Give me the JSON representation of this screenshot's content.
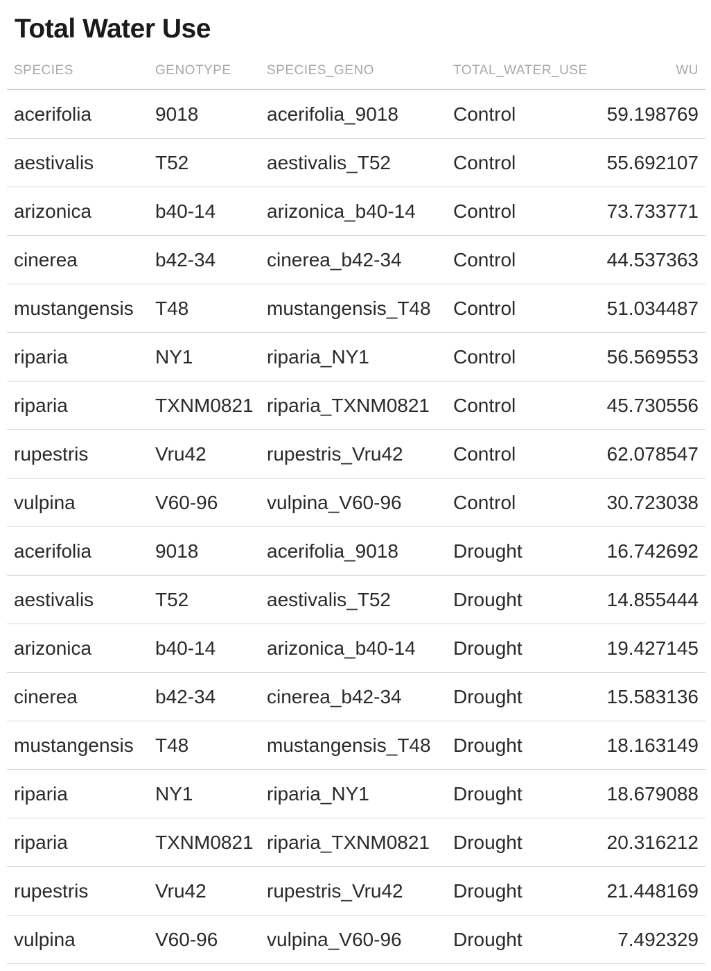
{
  "title": "Total Water Use",
  "columns": [
    "SPECIES",
    "GENOTYPE",
    "SPECIES_GENO",
    "TOTAL_WATER_USE",
    "WU"
  ],
  "rows": [
    [
      "acerifolia",
      "9018",
      "acerifolia_9018",
      "Control",
      "59.198769"
    ],
    [
      "aestivalis",
      "T52",
      "aestivalis_T52",
      "Control",
      "55.692107"
    ],
    [
      "arizonica",
      "b40-14",
      "arizonica_b40-14",
      "Control",
      "73.733771"
    ],
    [
      "cinerea",
      "b42-34",
      "cinerea_b42-34",
      "Control",
      "44.537363"
    ],
    [
      "mustangensis",
      "T48",
      "mustangensis_T48",
      "Control",
      "51.034487"
    ],
    [
      "riparia",
      "NY1",
      "riparia_NY1",
      "Control",
      "56.569553"
    ],
    [
      "riparia",
      "TXNM0821",
      "riparia_TXNM0821",
      "Control",
      "45.730556"
    ],
    [
      "rupestris",
      "Vru42",
      "rupestris_Vru42",
      "Control",
      "62.078547"
    ],
    [
      "vulpina",
      "V60-96",
      "vulpina_V60-96",
      "Control",
      "30.723038"
    ],
    [
      "acerifolia",
      "9018",
      "acerifolia_9018",
      "Drought",
      "16.742692"
    ],
    [
      "aestivalis",
      "T52",
      "aestivalis_T52",
      "Drought",
      "14.855444"
    ],
    [
      "arizonica",
      "b40-14",
      "arizonica_b40-14",
      "Drought",
      "19.427145"
    ],
    [
      "cinerea",
      "b42-34",
      "cinerea_b42-34",
      "Drought",
      "15.583136"
    ],
    [
      "mustangensis",
      "T48",
      "mustangensis_T48",
      "Drought",
      "18.163149"
    ],
    [
      "riparia",
      "NY1",
      "riparia_NY1",
      "Drought",
      "18.679088"
    ],
    [
      "riparia",
      "TXNM0821",
      "riparia_TXNM0821",
      "Drought",
      "20.316212"
    ],
    [
      "rupestris",
      "Vru42",
      "rupestris_Vru42",
      "Drought",
      "21.448169"
    ],
    [
      "vulpina",
      "V60-96",
      "vulpina_V60-96",
      "Drought",
      "7.492329"
    ]
  ]
}
